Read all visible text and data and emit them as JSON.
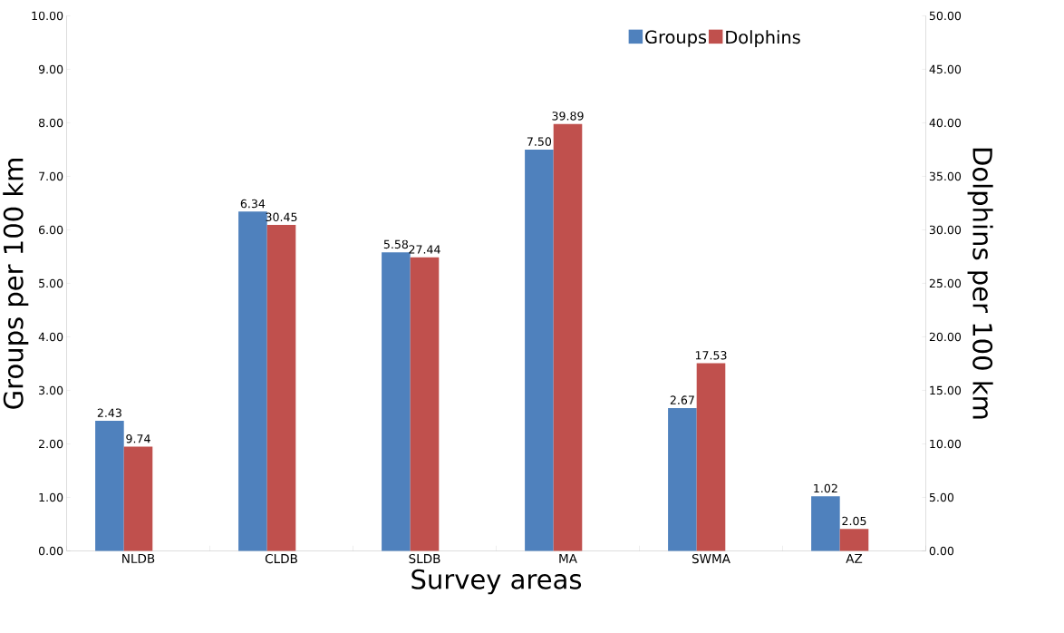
{
  "chart_data": {
    "type": "bar",
    "xlabel": "Survey areas",
    "ylabel": "Groups  per  100 km",
    "y2label": "Dolphins  per 100 km",
    "categories": [
      "NLDB",
      "CLDB",
      "SLDB",
      "MA",
      "SWMA",
      "AZ"
    ],
    "series": [
      {
        "name": "Groups",
        "color": "#4f81bd",
        "values": [
          2.43,
          6.34,
          5.58,
          7.5,
          2.67,
          1.02
        ],
        "value_labels": [
          "2.43",
          "6.34",
          "5.58",
          "7.50",
          "2.67",
          "1.02"
        ]
      },
      {
        "name": "Dolphins",
        "color": "#c0504d",
        "axis": "y2",
        "values": [
          9.74,
          30.45,
          27.44,
          39.89,
          17.53,
          2.05
        ],
        "value_labels": [
          "9.74",
          "30.45",
          "27.44",
          "39.89",
          "17.53",
          "2.05"
        ]
      }
    ],
    "ylim": [
      0,
      10
    ],
    "yticks": [
      {
        "value": 0,
        "label": "0.00"
      },
      {
        "value": 1,
        "label": "1.00"
      },
      {
        "value": 2,
        "label": "2.00"
      },
      {
        "value": 3,
        "label": "3.00"
      },
      {
        "value": 4,
        "label": "4.00"
      },
      {
        "value": 5,
        "label": "5.00"
      },
      {
        "value": 6,
        "label": "6.00"
      },
      {
        "value": 7,
        "label": "7.00"
      },
      {
        "value": 8,
        "label": "8.00"
      },
      {
        "value": 9,
        "label": "9.00"
      },
      {
        "value": 10,
        "label": "10.00"
      }
    ],
    "y2lim": [
      0,
      50
    ],
    "y2ticks": [
      {
        "value": 0,
        "label": "0.00"
      },
      {
        "value": 5,
        "label": "5.00"
      },
      {
        "value": 10,
        "label": "10.00"
      },
      {
        "value": 15,
        "label": "15.00"
      },
      {
        "value": 20,
        "label": "20.00"
      },
      {
        "value": 25,
        "label": "25.00"
      },
      {
        "value": 30,
        "label": "30.00"
      },
      {
        "value": 35,
        "label": "35.00"
      },
      {
        "value": 40,
        "label": "40.00"
      },
      {
        "value": 45,
        "label": "45.00"
      },
      {
        "value": 50,
        "label": "50.00"
      }
    ],
    "grid": false,
    "legend": "top right"
  }
}
